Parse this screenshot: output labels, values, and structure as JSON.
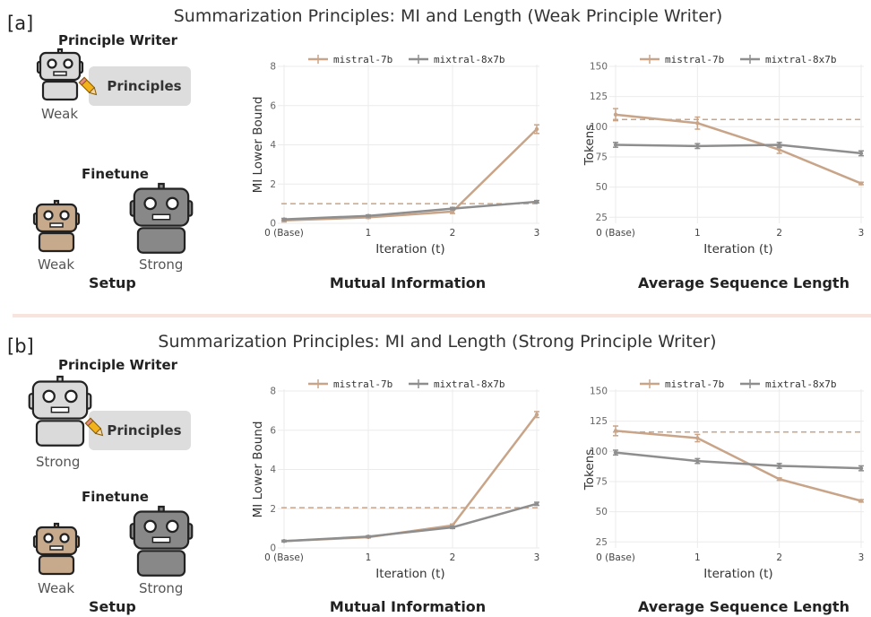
{
  "colors": {
    "mistral": "#c8a488",
    "mixtral": "#8e8e8e",
    "grid": "#ebebeb",
    "divider": "#f8e4dc",
    "weak_robot": "#c7a98c",
    "light_robot": "#dadada",
    "strong_robot": "#888888"
  },
  "panels": [
    {
      "label": "[a]",
      "title": "Summarization Principles: MI and Length (Weak Principle Writer)",
      "setup": {
        "principle_writer_heading": "Principle Writer",
        "writer_label": "Weak",
        "principles_label": "Principles",
        "finetune_heading": "Finetune",
        "weak_label": "Weak",
        "strong_label": "Strong",
        "caption": "Setup",
        "icons": [
          "robot-icon",
          "pencil-icon"
        ]
      }
    },
    {
      "label": "[b]",
      "title": "Summarization Principles: MI and Length (Strong Principle Writer)",
      "setup": {
        "principle_writer_heading": "Principle Writer",
        "writer_label": "Strong",
        "principles_label": "Principles",
        "finetune_heading": "Finetune",
        "weak_label": "Weak",
        "strong_label": "Strong",
        "caption": "Setup",
        "icons": [
          "robot-icon",
          "pencil-icon"
        ]
      }
    }
  ],
  "chart_data": [
    {
      "type": "line",
      "caption": "Mutual Information",
      "xlabel": "Iteration (t)",
      "ylabel": "MI Lower Bound",
      "x": [
        0,
        1,
        2,
        3
      ],
      "xtick_labels": [
        "0 (Base)",
        "1",
        "2",
        "3"
      ],
      "ylim": [
        0,
        8
      ],
      "yticks": [
        0,
        2,
        4,
        6,
        8
      ],
      "reference_line": 1.0,
      "grid": true,
      "legend": "top",
      "series": [
        {
          "name": "mistral-7b",
          "values": [
            0.15,
            0.3,
            0.6,
            4.8
          ],
          "errors": [
            0.08,
            0.05,
            0.1,
            0.22
          ]
        },
        {
          "name": "mixtral-8x7b",
          "values": [
            0.2,
            0.38,
            0.75,
            1.1
          ],
          "errors": [
            0.05,
            0.05,
            0.06,
            0.06
          ]
        }
      ]
    },
    {
      "type": "line",
      "caption": "Average Sequence Length",
      "xlabel": "Iteration (t)",
      "ylabel": "Tokens",
      "x": [
        0,
        1,
        2,
        3
      ],
      "xtick_labels": [
        "0 (Base)",
        "1",
        "2",
        "3"
      ],
      "ylim": [
        20,
        150
      ],
      "yticks": [
        25,
        50,
        75,
        100,
        125,
        150
      ],
      "reference_line": 106,
      "grid": true,
      "legend": "top",
      "series": [
        {
          "name": "mistral-7b",
          "values": [
            110,
            103,
            81,
            53
          ],
          "errors": [
            5,
            5,
            3,
            1
          ]
        },
        {
          "name": "mixtral-8x7b",
          "values": [
            85,
            84,
            85,
            78
          ],
          "errors": [
            2,
            2,
            2,
            2
          ]
        }
      ]
    },
    {
      "type": "line",
      "caption": "Mutual Information",
      "xlabel": "Iteration (t)",
      "ylabel": "MI Lower Bound",
      "x": [
        0,
        1,
        2,
        3
      ],
      "xtick_labels": [
        "0 (Base)",
        "1",
        "2",
        "3"
      ],
      "ylim": [
        0,
        8
      ],
      "yticks": [
        0,
        2,
        4,
        6,
        8
      ],
      "reference_line": 2.05,
      "grid": true,
      "legend": "top",
      "series": [
        {
          "name": "mistral-7b",
          "values": [
            0.35,
            0.55,
            1.15,
            6.8
          ],
          "errors": [
            0.04,
            0.04,
            0.07,
            0.15
          ]
        },
        {
          "name": "mixtral-8x7b",
          "values": [
            0.35,
            0.58,
            1.05,
            2.25
          ],
          "errors": [
            0.04,
            0.04,
            0.06,
            0.08
          ]
        }
      ]
    },
    {
      "type": "line",
      "caption": "Average Sequence Length",
      "xlabel": "Iteration (t)",
      "ylabel": "Tokens",
      "x": [
        0,
        1,
        2,
        3
      ],
      "xtick_labels": [
        "0 (Base)",
        "1",
        "2",
        "3"
      ],
      "ylim": [
        20,
        150
      ],
      "yticks": [
        25,
        50,
        75,
        100,
        125,
        150
      ],
      "reference_line": 116,
      "grid": true,
      "legend": "top",
      "series": [
        {
          "name": "mistral-7b",
          "values": [
            117,
            111,
            77,
            59
          ],
          "errors": [
            4,
            3,
            1,
            1
          ]
        },
        {
          "name": "mixtral-8x7b",
          "values": [
            99,
            92,
            88,
            86
          ],
          "errors": [
            2,
            2,
            2,
            2
          ]
        }
      ]
    }
  ]
}
